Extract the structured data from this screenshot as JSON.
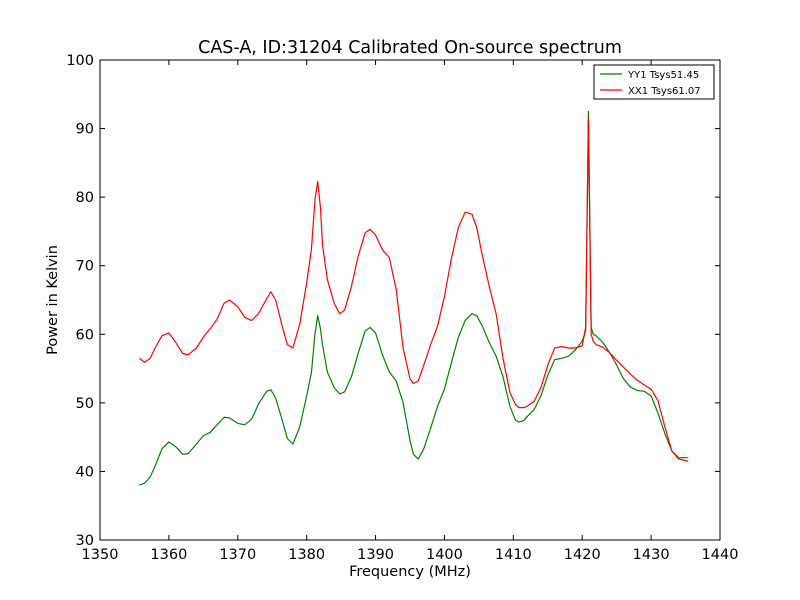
{
  "chart_data": {
    "type": "line",
    "title": "CAS-A, ID:31204 Calibrated On-source spectrum",
    "xlabel": "Frequency (MHz)",
    "ylabel": "Power in Kelvin",
    "xlim": [
      1350,
      1440
    ],
    "ylim": [
      30,
      100
    ],
    "xticks": [
      "1350",
      "1360",
      "1370",
      "1380",
      "1390",
      "1400",
      "1410",
      "1420",
      "1430",
      "1440"
    ],
    "yticks": [
      "30",
      "40",
      "50",
      "60",
      "70",
      "80",
      "90",
      "100"
    ],
    "grid": false,
    "legend_position": "top-right",
    "series": [
      {
        "name": "YY1 Tsys51.45",
        "color": "#008000",
        "x": [
          1355.7,
          1356.5,
          1357.3,
          1358,
          1359,
          1360,
          1361,
          1362,
          1362.8,
          1364,
          1365,
          1366,
          1367,
          1368,
          1368.8,
          1370,
          1371,
          1372,
          1373,
          1374.2,
          1374.8,
          1375.5,
          1376.5,
          1377.2,
          1378,
          1379,
          1380,
          1380.7,
          1381.2,
          1381.6,
          1382,
          1382.3,
          1383,
          1384,
          1384.8,
          1385.5,
          1386.5,
          1387.5,
          1388.5,
          1389.2,
          1390,
          1391,
          1392,
          1393,
          1394,
          1395,
          1395.5,
          1396.2,
          1397,
          1398,
          1399,
          1400,
          1401,
          1402,
          1403,
          1404,
          1404.7,
          1405.5,
          1406.5,
          1407.5,
          1408.5,
          1409.5,
          1410.3,
          1410.8,
          1411.5,
          1412,
          1413,
          1414,
          1415,
          1416,
          1417,
          1418,
          1419,
          1420,
          1420.5,
          1420.9,
          1421.3,
          1421.6,
          1422,
          1423,
          1424,
          1425,
          1426,
          1427,
          1428,
          1429,
          1430,
          1431,
          1432,
          1433,
          1434,
          1435.4
        ],
        "values": [
          38,
          38.3,
          39.2,
          40.8,
          43.3,
          44.3,
          43.6,
          42.5,
          42.6,
          44,
          45.2,
          45.7,
          46.8,
          47.9,
          47.8,
          47,
          46.8,
          47.6,
          49.8,
          51.7,
          51.9,
          50.7,
          47.3,
          44.8,
          44,
          46.5,
          51,
          54.5,
          60,
          62.7,
          60.8,
          58.5,
          54.5,
          52.2,
          51.3,
          51.6,
          53.8,
          57.3,
          60.5,
          61,
          60.2,
          57,
          54.5,
          53.2,
          50,
          44.5,
          42.5,
          41.8,
          43.3,
          46.3,
          49.5,
          52,
          55.8,
          59.5,
          62,
          63,
          62.7,
          61.2,
          58.8,
          56.8,
          53.8,
          49.5,
          47.5,
          47.2,
          47.4,
          48,
          49,
          51,
          54,
          56.3,
          56.5,
          56.8,
          57.7,
          59,
          60.5,
          92.5,
          61,
          60,
          59.8,
          58.8,
          57.3,
          55.5,
          53.5,
          52.3,
          51.8,
          51.7,
          51,
          48.5,
          45.5,
          43,
          42,
          42
        ]
      },
      {
        "name": "XX1 Tsys61.07",
        "color": "#ff0000",
        "x": [
          1355.7,
          1356.5,
          1357.3,
          1358,
          1359,
          1360,
          1361,
          1362,
          1362.8,
          1364,
          1365,
          1366,
          1367,
          1368,
          1368.8,
          1370,
          1371,
          1372,
          1373,
          1374.2,
          1374.8,
          1375.5,
          1376.5,
          1377.2,
          1378,
          1379,
          1380,
          1380.7,
          1381.2,
          1381.6,
          1382,
          1382.3,
          1383,
          1384,
          1384.8,
          1385.5,
          1386.5,
          1387.5,
          1388.5,
          1389.2,
          1390,
          1391,
          1392,
          1393,
          1394,
          1395,
          1395.5,
          1396.2,
          1397,
          1398,
          1399,
          1400,
          1401,
          1402,
          1403,
          1404,
          1404.7,
          1405.5,
          1406.5,
          1407.5,
          1408.5,
          1409.5,
          1410.3,
          1410.8,
          1411.5,
          1412,
          1413,
          1414,
          1415,
          1416,
          1417,
          1418,
          1419,
          1420,
          1420.5,
          1420.9,
          1421.3,
          1421.6,
          1422,
          1423,
          1424,
          1425,
          1426,
          1427,
          1428,
          1429,
          1430,
          1431,
          1432,
          1433,
          1434,
          1435.4
        ],
        "values": [
          56.5,
          55.9,
          56.5,
          58,
          59.8,
          60.2,
          58.8,
          57.2,
          57,
          58,
          59.6,
          60.8,
          62.2,
          64.5,
          65,
          64,
          62.5,
          62,
          63,
          65.2,
          66.2,
          65,
          61,
          58.5,
          58,
          61.5,
          67.5,
          72.5,
          79.5,
          82.3,
          78.5,
          73,
          68,
          64.5,
          63,
          63.5,
          67,
          71.5,
          74.8,
          75.3,
          74.5,
          72.3,
          71.2,
          66.5,
          58,
          53.5,
          52.8,
          53.2,
          55.5,
          58.5,
          61.2,
          65.5,
          71,
          75.5,
          77.8,
          77.5,
          75.5,
          71.5,
          67,
          63,
          56.5,
          51.5,
          49.8,
          49.3,
          49.3,
          49.5,
          50.2,
          52.2,
          55.5,
          58,
          58.2,
          58,
          58,
          58.3,
          61,
          91.5,
          60,
          59,
          58.5,
          58.1,
          57.3,
          56.2,
          55.2,
          54.2,
          53.3,
          52.6,
          52,
          50.3,
          46.5,
          43,
          41.8,
          41.5
        ]
      }
    ]
  }
}
